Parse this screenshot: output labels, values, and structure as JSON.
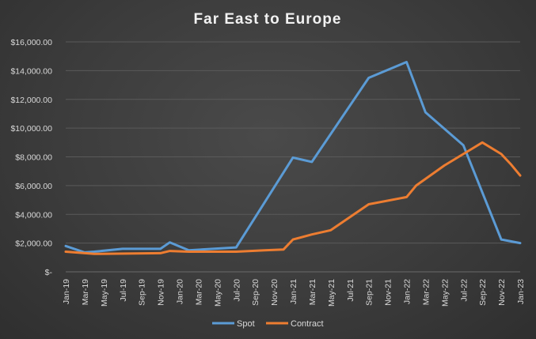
{
  "chart_data": {
    "type": "line",
    "title": "Far East to Europe",
    "xlabel": "",
    "ylabel": "",
    "ylim": [
      0,
      16000
    ],
    "yticks": [
      "$-",
      "$2,000.00",
      "$4,000.00",
      "$6,000.00",
      "$8,000.00",
      "$10,000.00",
      "$12,000.00",
      "$14,000.00",
      "$16,000.00"
    ],
    "categories": [
      "Jan-19",
      "Mar-19",
      "May-19",
      "Jul-19",
      "Sep-19",
      "Nov-19",
      "Jan-20",
      "Mar-20",
      "May-20",
      "Jul-20",
      "Sep-20",
      "Nov-20",
      "Jan-21",
      "Mar-21",
      "May-21",
      "Jul-21",
      "Sep-21",
      "Nov-21",
      "Jan-22",
      "Mar-22",
      "May-22",
      "Jul-22",
      "Sep-22",
      "Nov-22",
      "Jan-23"
    ],
    "series": [
      {
        "name": "Spot",
        "color": "#5b9bd5",
        "points": [
          [
            0,
            1800
          ],
          [
            2,
            1350
          ],
          [
            3,
            1400
          ],
          [
            6,
            1600
          ],
          [
            10,
            1600
          ],
          [
            11,
            2050
          ],
          [
            13,
            1500
          ],
          [
            18,
            1700
          ],
          [
            24,
            7950
          ],
          [
            26,
            7650
          ],
          [
            32,
            13500
          ],
          [
            36,
            14600
          ],
          [
            38,
            11100
          ],
          [
            42,
            8800
          ],
          [
            46,
            2250
          ],
          [
            48,
            2000
          ]
        ]
      },
      {
        "name": "Contract",
        "color": "#ed7d31",
        "points": [
          [
            0,
            1400
          ],
          [
            3,
            1250
          ],
          [
            10,
            1300
          ],
          [
            11,
            1450
          ],
          [
            13,
            1400
          ],
          [
            18,
            1400
          ],
          [
            21,
            1500
          ],
          [
            23,
            1550
          ],
          [
            24,
            2250
          ],
          [
            26,
            2600
          ],
          [
            28,
            2900
          ],
          [
            32,
            4700
          ],
          [
            36,
            5200
          ],
          [
            37,
            6000
          ],
          [
            40,
            7400
          ],
          [
            43,
            8600
          ],
          [
            44,
            9000
          ],
          [
            46,
            8200
          ],
          [
            47,
            7500
          ],
          [
            48,
            6700
          ]
        ]
      }
    ],
    "legend": [
      "Spot",
      "Contract"
    ],
    "legend_position": "bottom",
    "grid": true
  }
}
